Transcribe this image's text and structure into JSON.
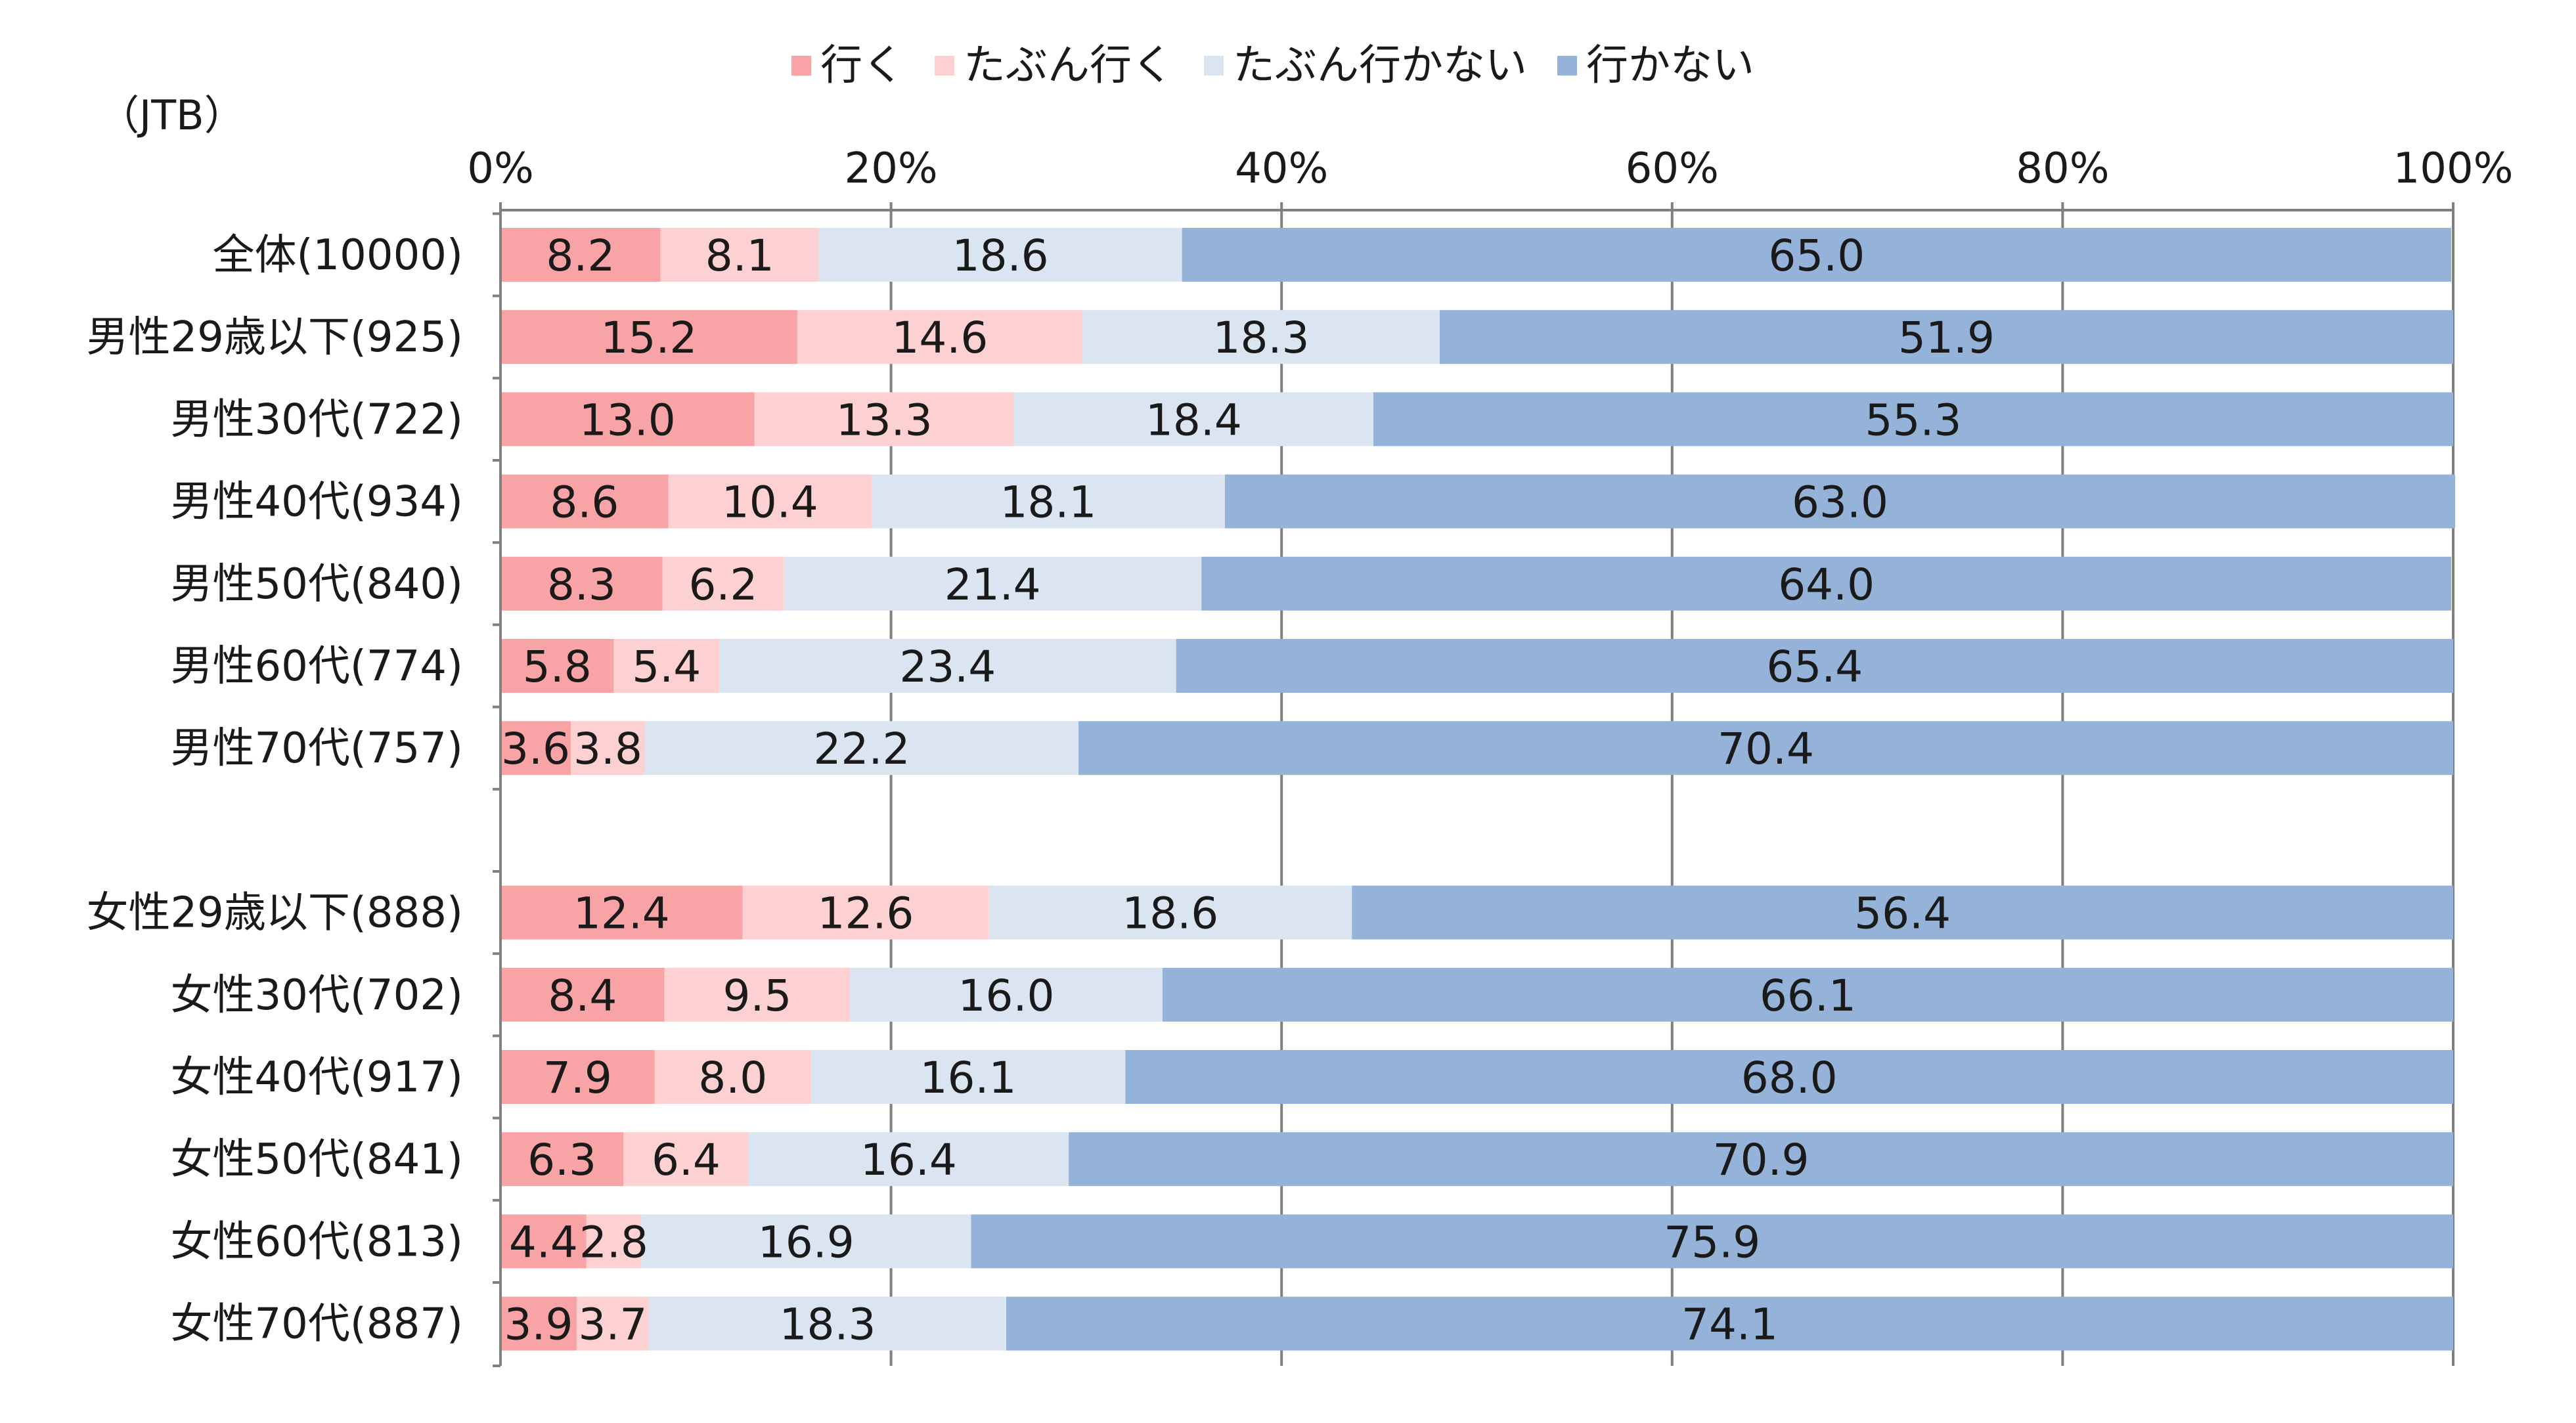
{
  "source_label": "（JTB）",
  "colors": {
    "iku": "#f8a3a5",
    "tabun_iku": "#fdd0d1",
    "tabun_ikanai": "#dbe4f1",
    "ikanai": "#95b3d8",
    "axis": "#808080"
  },
  "chart_data": {
    "type": "bar",
    "orientation": "horizontal",
    "stacked": true,
    "percent_stacked": true,
    "x_ticks": [
      "0%",
      "20%",
      "40%",
      "60%",
      "80%",
      "100%"
    ],
    "xlim": [
      0,
      100
    ],
    "grid": true,
    "legend_position": "top",
    "categories": [
      "全体(10000)",
      "男性29歳以下(925)",
      "男性30代(722)",
      "男性40代(934)",
      "男性50代(840)",
      "男性60代(774)",
      "男性70代(757)",
      "",
      "女性29歳以下(888)",
      "女性30代(702)",
      "女性40代(917)",
      "女性50代(841)",
      "女性60代(813)",
      "女性70代(887)"
    ],
    "series": [
      {
        "name": "行く",
        "color_key": "iku",
        "values": [
          8.2,
          15.2,
          13.0,
          8.6,
          8.3,
          5.8,
          3.6,
          null,
          12.4,
          8.4,
          7.9,
          6.3,
          4.4,
          3.9
        ],
        "labels": [
          "8.2",
          "15.2",
          "13.0",
          "8.6",
          "8.3",
          "5.8",
          "3.6",
          "",
          "12.4",
          "8.4",
          "7.9",
          "6.3",
          "4.4",
          "3.9"
        ]
      },
      {
        "name": "たぶん行く",
        "color_key": "tabun_iku",
        "values": [
          8.1,
          14.6,
          13.3,
          10.4,
          6.2,
          5.4,
          3.8,
          null,
          12.6,
          9.5,
          8.0,
          6.4,
          2.8,
          3.7
        ],
        "labels": [
          "8.1",
          "14.6",
          "13.3",
          "10.4",
          "6.2",
          "5.4",
          "3.8",
          "",
          "12.6",
          "9.5",
          "8.0",
          "6.4",
          "2.8",
          "3.7"
        ]
      },
      {
        "name": "たぶん行かない",
        "color_key": "tabun_ikanai",
        "values": [
          18.6,
          18.3,
          18.4,
          18.1,
          21.4,
          23.4,
          22.2,
          null,
          18.6,
          16.0,
          16.1,
          16.4,
          16.9,
          18.3
        ],
        "labels": [
          "18.6",
          "18.3",
          "18.4",
          "18.1",
          "21.4",
          "23.4",
          "22.2",
          "",
          "18.6",
          "16.0",
          "16.1",
          "16.4",
          "16.9",
          "18.3"
        ]
      },
      {
        "name": "行かない",
        "color_key": "ikanai",
        "values": [
          65.0,
          51.9,
          55.3,
          63.0,
          64.0,
          65.4,
          70.4,
          null,
          56.4,
          66.1,
          68.0,
          70.9,
          75.9,
          74.1
        ],
        "labels": [
          "65.0",
          "51.9",
          "55.3",
          "63.0",
          "64.0",
          "65.4",
          "70.4",
          "",
          "56.4",
          "66.1",
          "68.0",
          "70.9",
          "75.9",
          "74.1"
        ]
      }
    ]
  }
}
